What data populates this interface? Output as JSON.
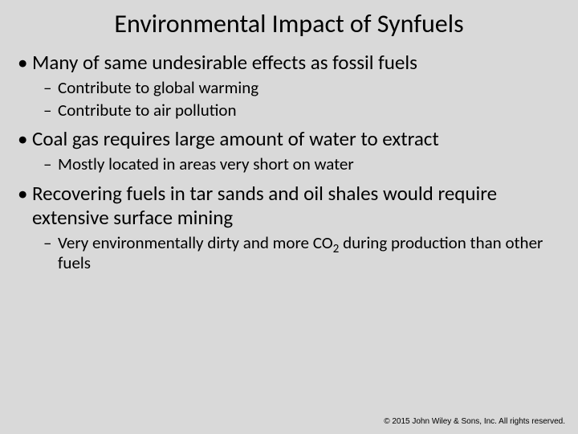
{
  "title": "Environmental Impact of Synfuels",
  "bullets": {
    "b1": "Many of same undesirable effects as fossil fuels",
    "b1s1": "Contribute to global warming",
    "b1s2": "Contribute to air pollution",
    "b2": "Coal gas requires large amount of water to extract",
    "b2s1": "Mostly located in areas very short on water",
    "b3": "Recovering fuels in tar sands and oil shales would require extensive surface mining",
    "b3s1_pre": "Very environmentally dirty and more CO",
    "b3s1_sub": "2",
    "b3s1_post": " during production than other fuels"
  },
  "footer": "© 2015 John Wiley & Sons, Inc. All rights reserved.",
  "style": {
    "background_color": "#d9d9d9",
    "text_color": "#000000",
    "title_fontsize": 32,
    "l1_fontsize": 25,
    "l2_fontsize": 21,
    "footer_fontsize": 10,
    "font_family": "Calibri"
  }
}
